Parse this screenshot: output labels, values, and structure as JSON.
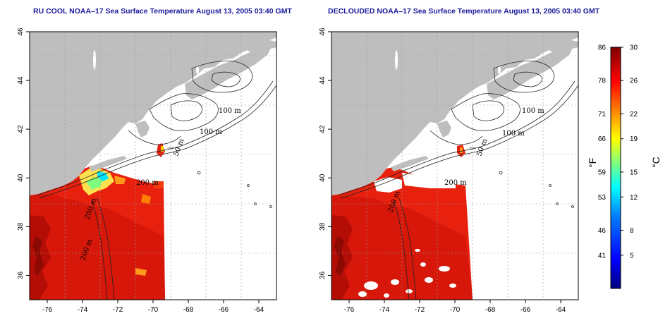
{
  "panels": [
    {
      "id": "rucool",
      "title": "RU COOL NOAA–17 Sea Surface Temperature August 13, 2005 03:40 GMT",
      "contour_labels": [
        "100 m",
        "100 m",
        "50 m",
        "200 m",
        "200 m",
        "200 m"
      ]
    },
    {
      "id": "declouded",
      "title": "DECLOUDED NOAA–17 Sea Surface Temperature August 13, 2005 03:40 GMT",
      "contour_labels": [
        "100 m",
        "100 m",
        "50 m",
        "200 m",
        "200 m"
      ]
    }
  ],
  "map_axes": {
    "x_ticks": [
      "-76",
      "-74",
      "-72",
      "-70",
      "-68",
      "-66",
      "-64"
    ],
    "y_ticks": [
      "46",
      "44",
      "42",
      "40",
      "38",
      "36"
    ],
    "lon_range": [
      -77,
      -63
    ],
    "lat_range": [
      35,
      46
    ],
    "grid": true
  },
  "colorbar": {
    "fahrenheit_label": "°F",
    "celsius_label": "°C",
    "fahrenheit_ticks": [
      "86",
      "78",
      "71",
      "66",
      "59",
      "53",
      "46",
      "41"
    ],
    "celsius_ticks": [
      "30",
      "26",
      "22",
      "19",
      "15",
      "12",
      "8",
      "5"
    ],
    "colors": [
      "#00007f",
      "#0000ff",
      "#007fff",
      "#00ffff",
      "#7fff7f",
      "#ffff00",
      "#ff7f00",
      "#ff0000",
      "#7f0000"
    ]
  },
  "colors": {
    "land": "#bebebe",
    "ocean_nodata": "#ffffff",
    "sst_warm": "#e8210f",
    "sst_dark": "#c41308",
    "title": "#1a1a9a"
  }
}
